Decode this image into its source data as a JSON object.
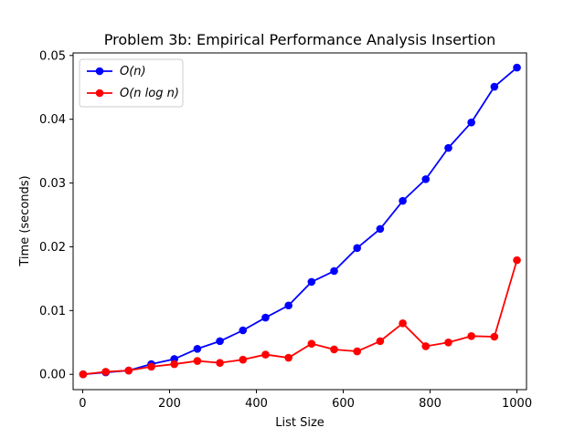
{
  "chart_data": {
    "type": "line",
    "title": "Problem 3b: Empirical Performance Analysis Insertion",
    "xlabel": "List Size",
    "ylabel": "Time (seconds)",
    "xlim": [
      -22,
      1022
    ],
    "ylim": [
      -0.0024,
      0.0504
    ],
    "xticks": [
      0,
      200,
      400,
      600,
      800,
      1000
    ],
    "xtick_labels": [
      "0",
      "200",
      "400",
      "600",
      "800",
      "1000"
    ],
    "yticks": [
      0.0,
      0.01,
      0.02,
      0.03,
      0.04,
      0.05
    ],
    "ytick_labels": [
      "0.00",
      "0.01",
      "0.02",
      "0.03",
      "0.04",
      "0.05"
    ],
    "grid": false,
    "legend_position": "top-left",
    "x": [
      1,
      53,
      106,
      158,
      211,
      264,
      316,
      369,
      421,
      474,
      527,
      579,
      632,
      685,
      737,
      790,
      842,
      895,
      948,
      1000
    ],
    "series": [
      {
        "name": "O(n)",
        "color": "#0000ff",
        "marker": "circle",
        "values": [
          0.0,
          0.0003,
          0.0006,
          0.0016,
          0.0024,
          0.004,
          0.0052,
          0.0069,
          0.0089,
          0.0108,
          0.0145,
          0.0162,
          0.0198,
          0.0228,
          0.0272,
          0.0306,
          0.0355,
          0.0395,
          0.0451,
          0.0481
        ]
      },
      {
        "name": "O(n log n)",
        "color": "#ff0000",
        "marker": "circle",
        "values": [
          0.0,
          0.0004,
          0.0006,
          0.0012,
          0.0016,
          0.0021,
          0.0018,
          0.0023,
          0.0031,
          0.0026,
          0.0048,
          0.0039,
          0.0036,
          0.0052,
          0.008,
          0.0044,
          0.005,
          0.006,
          0.0059,
          0.0179
        ]
      }
    ]
  }
}
